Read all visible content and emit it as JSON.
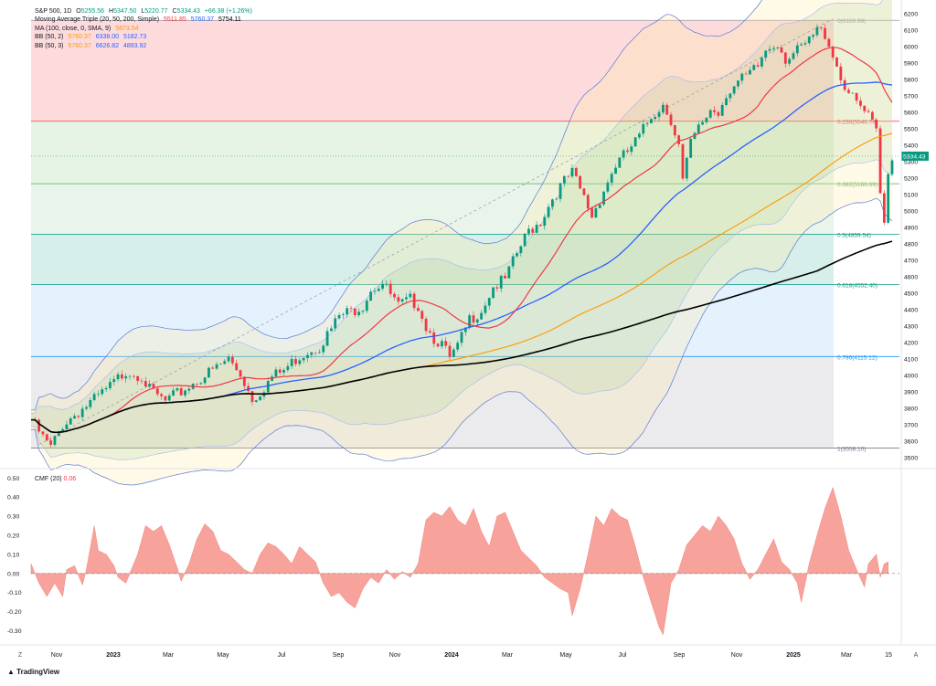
{
  "legend": {
    "symbol": "S&P 500, 1D",
    "o_label": "O",
    "o": "5255.56",
    "h_label": "H",
    "h": "5347.50",
    "l_label": "L",
    "l": "5220.77",
    "c_label": "C",
    "c": "5334.43",
    "change": "+66.38 (+1.26%)",
    "mat_label": "Moving Average Triple (20, 50, 200, Simple)",
    "mat_values": [
      "5511.85",
      "5760.37",
      "5754.11"
    ],
    "ma_label": "MA (100, close, 0, SMA, 9)",
    "ma_value": "5873.54",
    "bb1_label": "BB (50, 2)",
    "bb1_values": [
      "5760.37",
      "6338.00",
      "5182.73"
    ],
    "bb2_label": "BB (50, 3)",
    "bb2_values": [
      "5760.37",
      "6626.82",
      "4893.92"
    ]
  },
  "cmf_label": "CMF (20)",
  "cmf_value": "0.06",
  "brand": "TradingView",
  "corner_left": "Z",
  "corner_right": "A",
  "colors": {
    "ma20": "#f23645",
    "ma50": "#2962ff",
    "ma200": "#000000",
    "ma100": "#ff9800",
    "bb1": "#2962ff",
    "bb2": "#ff9800",
    "up": "#089981",
    "down": "#f23645",
    "cmf": "#f7a39c"
  },
  "chart_data": [
    {
      "type": "line",
      "title": "S&P 500, 1D",
      "x_axis_labels": [
        "Nov",
        "2023",
        "Mar",
        "May",
        "Jul",
        "Sep",
        "Nov",
        "2024",
        "Mar",
        "May",
        "Jul",
        "Sep",
        "Nov",
        "2025",
        "Mar",
        "15"
      ],
      "y_ticks": [
        3500,
        3600,
        3700,
        3800,
        3900,
        4000,
        4100,
        4200,
        4300,
        4400,
        4500,
        4600,
        4700,
        4800,
        4900,
        5000,
        5100,
        5200,
        5300,
        5400,
        5500,
        5600,
        5700,
        5800,
        5900,
        6000,
        6100,
        6200
      ],
      "ylim": [
        3450,
        6240
      ],
      "last_price": "5334.43",
      "fib_levels": [
        {
          "ratio": 0,
          "price": 6160.99,
          "label": "0(6160.99)",
          "color": "#9598a1"
        },
        {
          "ratio": 0.236,
          "price": 5546.79,
          "label": "0.236(5546.79)",
          "color": "#f23645"
        },
        {
          "ratio": 0.382,
          "price": 5166.69,
          "label": "0.382(5166.69)",
          "color": "#4caf50"
        },
        {
          "ratio": 0.5,
          "price": 4859.54,
          "label": "0.5(4859.54)",
          "color": "#089981"
        },
        {
          "ratio": 0.618,
          "price": 4552.4,
          "label": "0.618(4552.40)",
          "color": "#089981"
        },
        {
          "ratio": 0.786,
          "price": 4115.12,
          "label": "0.786(4115.12)",
          "color": "#2196f3"
        },
        {
          "ratio": 1,
          "price": 3558.1,
          "label": "1(3558.10)",
          "color": "#787b86"
        }
      ],
      "price_series": [
        [
          0,
          3750
        ],
        [
          3,
          3640
        ],
        [
          5,
          3580
        ],
        [
          8,
          3720
        ],
        [
          12,
          3800
        ],
        [
          16,
          3870
        ],
        [
          20,
          3950
        ],
        [
          24,
          4050
        ],
        [
          28,
          4020
        ],
        [
          30,
          3930
        ],
        [
          34,
          3860
        ],
        [
          38,
          3920
        ],
        [
          42,
          3990
        ],
        [
          46,
          4050
        ],
        [
          50,
          4120
        ],
        [
          53,
          4030
        ],
        [
          56,
          3880
        ],
        [
          58,
          3920
        ],
        [
          61,
          4010
        ],
        [
          64,
          4050
        ],
        [
          67,
          4120
        ],
        [
          70,
          4170
        ],
        [
          73,
          4200
        ],
        [
          76,
          4300
        ],
        [
          78,
          4380
        ],
        [
          81,
          4410
        ],
        [
          84,
          4450
        ],
        [
          86,
          4550
        ],
        [
          89,
          4580
        ],
        [
          91,
          4510
        ],
        [
          93,
          4440
        ],
        [
          96,
          4480
        ],
        [
          98,
          4450
        ],
        [
          100,
          4320
        ],
        [
          102,
          4250
        ],
        [
          104,
          4210
        ],
        [
          106,
          4120
        ],
        [
          108,
          4190
        ],
        [
          111,
          4360
        ],
        [
          114,
          4420
        ],
        [
          117,
          4560
        ],
        [
          120,
          4600
        ],
        [
          123,
          4760
        ],
        [
          126,
          4900
        ],
        [
          129,
          4960
        ],
        [
          132,
          5100
        ],
        [
          135,
          5200
        ],
        [
          137,
          5250
        ],
        [
          140,
          5100
        ],
        [
          142,
          4990
        ],
        [
          145,
          5150
        ],
        [
          148,
          5300
        ],
        [
          151,
          5380
        ],
        [
          154,
          5470
        ],
        [
          157,
          5600
        ],
        [
          160,
          5670
        ],
        [
          162,
          5580
        ],
        [
          164,
          5420
        ],
        [
          165,
          5200
        ],
        [
          167,
          5430
        ],
        [
          169,
          5520
        ],
        [
          172,
          5640
        ],
        [
          174,
          5620
        ],
        [
          176,
          5740
        ],
        [
          179,
          5800
        ],
        [
          182,
          5850
        ],
        [
          184,
          5900
        ],
        [
          186,
          6000
        ],
        [
          189,
          6050
        ],
        [
          191,
          5950
        ],
        [
          194,
          5990
        ],
        [
          197,
          6050
        ],
        [
          199,
          6120
        ],
        [
          201,
          6100
        ],
        [
          203,
          5980
        ],
        [
          205,
          5830
        ],
        [
          208,
          5700
        ],
        [
          210,
          5650
        ],
        [
          212,
          5590
        ],
        [
          214,
          5500
        ],
        [
          215,
          5120
        ],
        [
          216,
          4950
        ],
        [
          217,
          5280
        ],
        [
          218,
          5334
        ]
      ]
    },
    {
      "type": "area",
      "title": "CMF (20)",
      "y_ticks": [
        -0.3,
        -0.2,
        -0.1,
        0.0,
        0.1,
        0.2,
        0.3,
        0.4,
        0.5
      ],
      "y_tick_labels": [
        "-0.30",
        "-0.20",
        "-0.10",
        "0.00",
        "0.10",
        "0.20",
        "0.30",
        "0.40",
        "0.50"
      ],
      "ylim": [
        -0.36,
        0.54
      ],
      "last_value": "0.06",
      "series": [
        [
          0,
          0.05
        ],
        [
          2,
          -0.05
        ],
        [
          4,
          -0.12
        ],
        [
          6,
          -0.05
        ],
        [
          8,
          -0.12
        ],
        [
          9,
          0.02
        ],
        [
          11,
          0.04
        ],
        [
          13,
          -0.06
        ],
        [
          14,
          0.02
        ],
        [
          16,
          0.25
        ],
        [
          17,
          0.12
        ],
        [
          19,
          0.1
        ],
        [
          21,
          0.04
        ],
        [
          22,
          -0.02
        ],
        [
          24,
          -0.05
        ],
        [
          25,
          0.0
        ],
        [
          27,
          0.1
        ],
        [
          29,
          0.25
        ],
        [
          31,
          0.22
        ],
        [
          33,
          0.25
        ],
        [
          35,
          0.15
        ],
        [
          37,
          0.03
        ],
        [
          38,
          -0.04
        ],
        [
          40,
          0.05
        ],
        [
          42,
          0.18
        ],
        [
          44,
          0.26
        ],
        [
          46,
          0.22
        ],
        [
          48,
          0.12
        ],
        [
          50,
          0.1
        ],
        [
          52,
          0.06
        ],
        [
          54,
          0.02
        ],
        [
          56,
          0.0
        ],
        [
          58,
          0.1
        ],
        [
          60,
          0.16
        ],
        [
          62,
          0.14
        ],
        [
          64,
          0.1
        ],
        [
          66,
          0.05
        ],
        [
          68,
          0.14
        ],
        [
          70,
          0.1
        ],
        [
          72,
          0.06
        ],
        [
          74,
          -0.05
        ],
        [
          76,
          -0.12
        ],
        [
          78,
          -0.1
        ],
        [
          80,
          -0.15
        ],
        [
          82,
          -0.18
        ],
        [
          84,
          -0.08
        ],
        [
          86,
          -0.02
        ],
        [
          88,
          -0.05
        ],
        [
          90,
          0.02
        ],
        [
          92,
          -0.03
        ],
        [
          94,
          0.01
        ],
        [
          96,
          -0.02
        ],
        [
          98,
          0.05
        ],
        [
          100,
          0.28
        ],
        [
          102,
          0.32
        ],
        [
          104,
          0.3
        ],
        [
          106,
          0.35
        ],
        [
          108,
          0.28
        ],
        [
          110,
          0.25
        ],
        [
          112,
          0.34
        ],
        [
          114,
          0.22
        ],
        [
          116,
          0.14
        ],
        [
          118,
          0.3
        ],
        [
          120,
          0.32
        ],
        [
          122,
          0.22
        ],
        [
          124,
          0.12
        ],
        [
          126,
          0.08
        ],
        [
          128,
          0.04
        ],
        [
          130,
          -0.02
        ],
        [
          132,
          -0.05
        ],
        [
          134,
          -0.08
        ],
        [
          136,
          -0.1
        ],
        [
          137,
          -0.22
        ],
        [
          139,
          -0.08
        ],
        [
          141,
          0.1
        ],
        [
          143,
          0.3
        ],
        [
          145,
          0.25
        ],
        [
          147,
          0.34
        ],
        [
          149,
          0.3
        ],
        [
          151,
          0.28
        ],
        [
          153,
          0.14
        ],
        [
          155,
          -0.02
        ],
        [
          157,
          -0.15
        ],
        [
          159,
          -0.28
        ],
        [
          160,
          -0.32
        ],
        [
          162,
          -0.05
        ],
        [
          164,
          0.02
        ],
        [
          166,
          0.15
        ],
        [
          168,
          0.2
        ],
        [
          170,
          0.25
        ],
        [
          172,
          0.22
        ],
        [
          174,
          0.3
        ],
        [
          176,
          0.25
        ],
        [
          178,
          0.18
        ],
        [
          180,
          0.05
        ],
        [
          182,
          -0.03
        ],
        [
          184,
          0.02
        ],
        [
          186,
          0.1
        ],
        [
          188,
          0.18
        ],
        [
          190,
          0.06
        ],
        [
          192,
          0.02
        ],
        [
          194,
          -0.05
        ],
        [
          195,
          -0.15
        ],
        [
          197,
          0.05
        ],
        [
          199,
          0.2
        ],
        [
          201,
          0.34
        ],
        [
          203,
          0.45
        ],
        [
          205,
          0.3
        ],
        [
          207,
          0.12
        ],
        [
          209,
          0.02
        ],
        [
          211,
          -0.07
        ],
        [
          212,
          0.05
        ],
        [
          214,
          0.1
        ],
        [
          215,
          -0.02
        ],
        [
          216,
          0.05
        ],
        [
          217,
          0.06
        ]
      ]
    }
  ]
}
